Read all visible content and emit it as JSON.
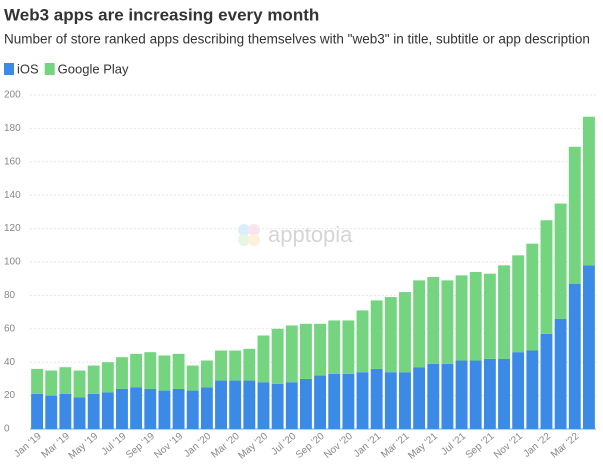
{
  "chart_data": {
    "type": "stacked_bar",
    "title": "Web3 apps are increasing every month",
    "subtitle": "Number of store ranked apps describing themselves with \"web3\" in title, subtitle or app description",
    "watermark": "apptopia",
    "categories": [
      "Jan '19",
      null,
      "Mar '19",
      null,
      "May '19",
      null,
      "Jul '19",
      null,
      "Sep '19",
      null,
      "Nov '19",
      null,
      "Jan '20",
      null,
      "Mar '20",
      null,
      "May '20",
      null,
      "Jul '20",
      null,
      "Sep '20",
      null,
      "Nov '20",
      null,
      "Jan '21",
      null,
      "Mar '21",
      null,
      "May '21",
      null,
      "Jul '21",
      null,
      "Sep '21",
      null,
      "Nov '21",
      null,
      "Jan '22",
      null,
      "Mar '22",
      null
    ],
    "series": [
      {
        "name": "iOS",
        "color": "#3b8ae6",
        "values": [
          21,
          20,
          21,
          19,
          21,
          22,
          24,
          25,
          24,
          23,
          24,
          23,
          25,
          29,
          29,
          29,
          28,
          27,
          28,
          30,
          32,
          33,
          33,
          34,
          36,
          34,
          34,
          37,
          39,
          39,
          41,
          41,
          42,
          42,
          46,
          47,
          57,
          66,
          87,
          98
        ]
      },
      {
        "name": "Google Play",
        "color": "#74d47f",
        "values": [
          15,
          15,
          16,
          16,
          17,
          18,
          19,
          20,
          22,
          21,
          21,
          15,
          16,
          18,
          18,
          19,
          28,
          33,
          34,
          33,
          31,
          32,
          32,
          37,
          41,
          45,
          48,
          52,
          52,
          50,
          51,
          53,
          51,
          56,
          58,
          64,
          68,
          69,
          82,
          89
        ]
      }
    ],
    "ylim": [
      0,
      200
    ],
    "yticks": [
      0,
      20,
      40,
      60,
      80,
      100,
      120,
      140,
      160,
      180,
      200
    ],
    "grid": true
  }
}
